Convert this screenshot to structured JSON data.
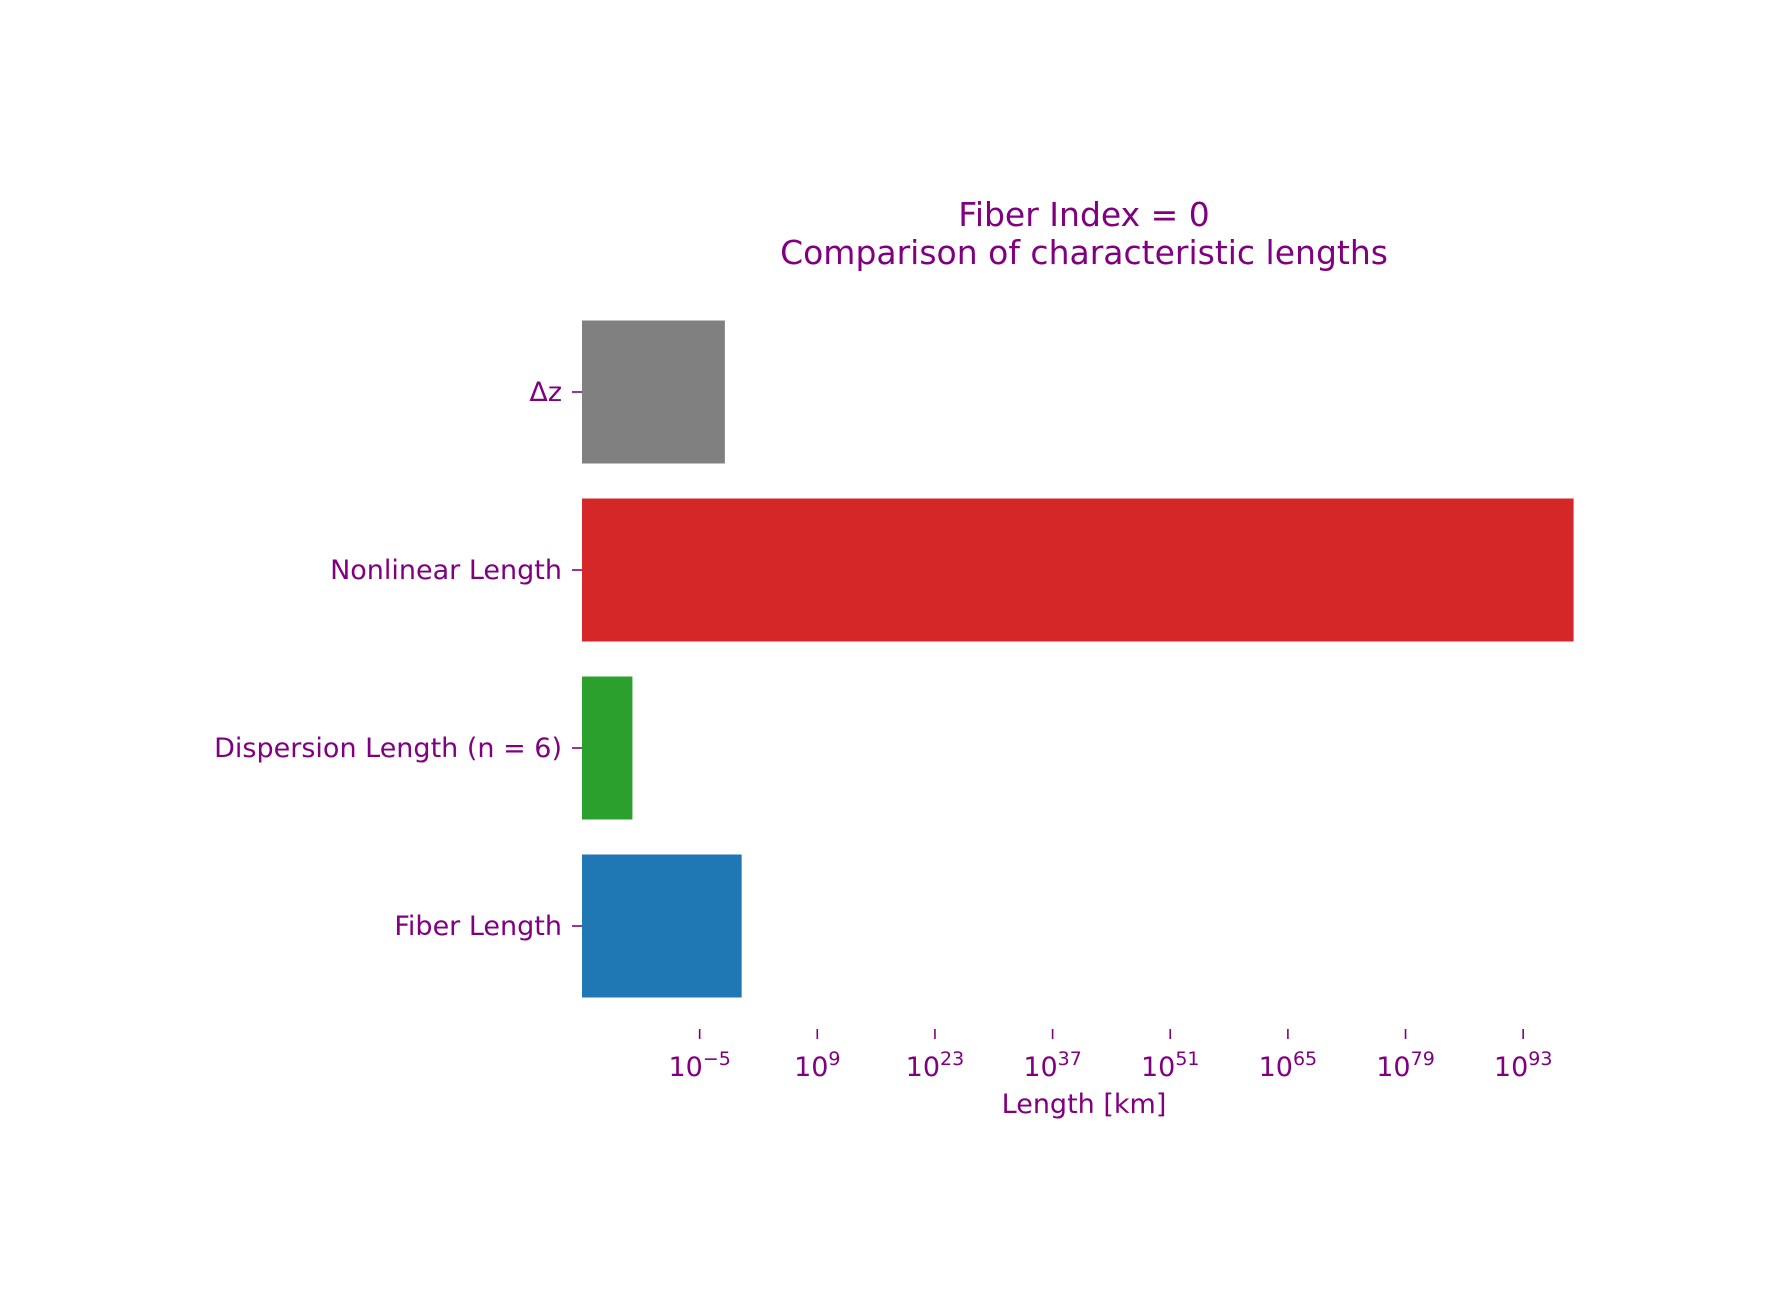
{
  "chart_data": {
    "type": "bar",
    "orientation": "horizontal",
    "title": "Fiber Index = 0",
    "subtitle": "Comparison of characteristic lengths",
    "xlabel": "Length [km]",
    "ylabel": "",
    "x_scale": "log",
    "xlim": [
      1e-19,
      1e+100
    ],
    "x_ticks": [
      {
        "base": "10",
        "exp": "−5",
        "value": 1e-05
      },
      {
        "base": "10",
        "exp": "9",
        "value": 1000000000.0
      },
      {
        "base": "10",
        "exp": "23",
        "value": 1e+23
      },
      {
        "base": "10",
        "exp": "37",
        "value": 1e+37
      },
      {
        "base": "10",
        "exp": "51",
        "value": 1e+51
      },
      {
        "base": "10",
        "exp": "65",
        "value": 1e+65
      },
      {
        "base": "10",
        "exp": "79",
        "value": 1e+79
      },
      {
        "base": "10",
        "exp": "93",
        "value": 1e+93
      }
    ],
    "categories": [
      "Fiber Length",
      "Dispersion Length (n = 6)",
      "Nonlinear Length",
      "Δz"
    ],
    "values": [
      1.0,
      1e-13,
      1e+99,
      0.01
    ],
    "colors": [
      "#1f77b4",
      "#2ca02c",
      "#d62728",
      "#808080"
    ],
    "text_color": "#800080",
    "grid": false,
    "legend": "none"
  }
}
